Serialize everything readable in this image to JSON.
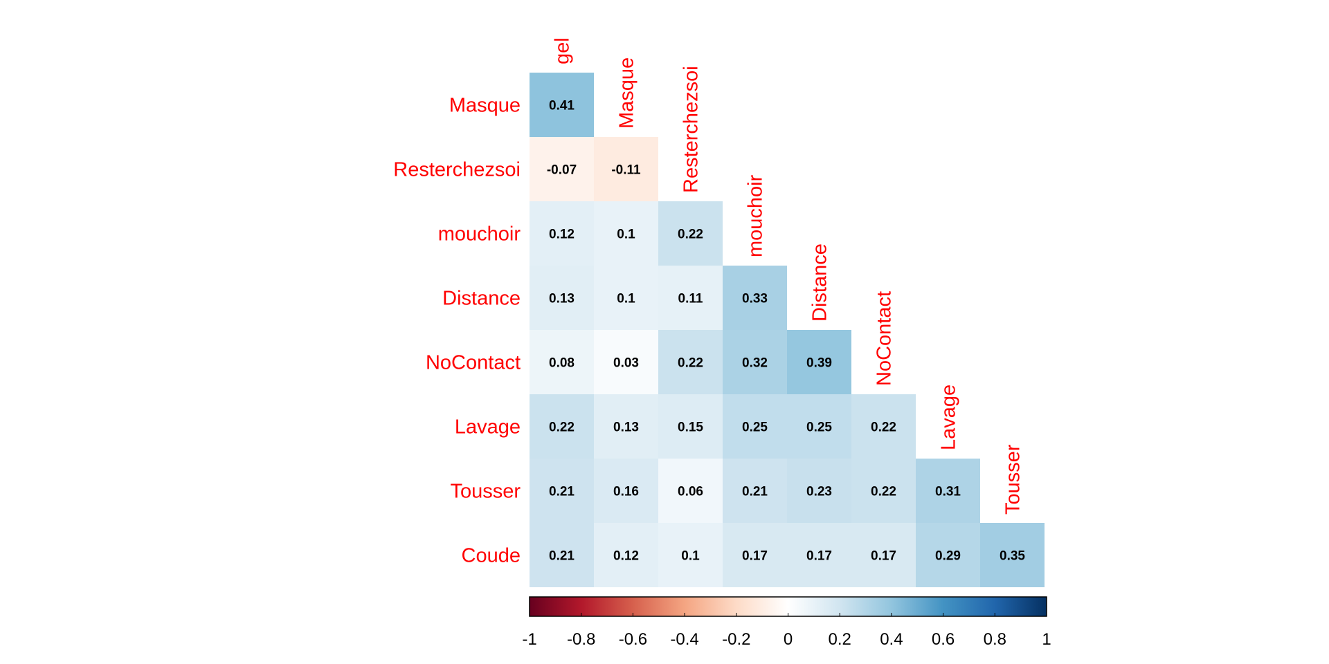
{
  "chart_data": {
    "type": "heatmap",
    "subtype": "correlation-matrix-lower-triangle",
    "title": "",
    "variables": [
      "gel",
      "Masque",
      "Resterchezsoi",
      "mouchoir",
      "Distance",
      "NoContact",
      "Lavage",
      "Tousser",
      "Coude"
    ],
    "row_labels": [
      "Masque",
      "Resterchezsoi",
      "mouchoir",
      "Distance",
      "NoContact",
      "Lavage",
      "Tousser",
      "Coude"
    ],
    "col_labels": [
      "gel",
      "Masque",
      "Resterchezsoi",
      "mouchoir",
      "Distance",
      "NoContact",
      "Lavage",
      "Tousser"
    ],
    "values": [
      [
        0.41
      ],
      [
        -0.07,
        -0.11
      ],
      [
        0.12,
        0.1,
        0.22
      ],
      [
        0.13,
        0.1,
        0.11,
        0.33
      ],
      [
        0.08,
        0.03,
        0.22,
        0.32,
        0.39
      ],
      [
        0.22,
        0.13,
        0.15,
        0.25,
        0.25,
        0.22
      ],
      [
        0.21,
        0.16,
        0.06,
        0.21,
        0.23,
        0.22,
        0.31
      ],
      [
        0.21,
        0.12,
        0.1,
        0.17,
        0.17,
        0.17,
        0.29,
        0.35
      ]
    ],
    "value_labels": [
      [
        "0.41"
      ],
      [
        "-0.07",
        "-0.11"
      ],
      [
        "0.12",
        "0.1",
        "0.22"
      ],
      [
        "0.13",
        "0.1",
        "0.11",
        "0.33"
      ],
      [
        "0.08",
        "0.03",
        "0.22",
        "0.32",
        "0.39"
      ],
      [
        "0.22",
        "0.13",
        "0.15",
        "0.25",
        "0.25",
        "0.22"
      ],
      [
        "0.21",
        "0.16",
        "0.06",
        "0.21",
        "0.23",
        "0.22",
        "0.31"
      ],
      [
        "0.21",
        "0.12",
        "0.1",
        "0.17",
        "0.17",
        "0.17",
        "0.29",
        "0.35"
      ]
    ],
    "color_range": [
      -1,
      1
    ],
    "colorbar": {
      "ticks": [
        -1,
        -0.8,
        -0.6,
        -0.4,
        -0.2,
        0,
        0.2,
        0.4,
        0.6,
        0.8,
        1
      ],
      "tick_labels": [
        "-1",
        "-0.8",
        "-0.6",
        "-0.4",
        "-0.2",
        "0",
        "0.2",
        "0.4",
        "0.6",
        "0.8",
        "1"
      ],
      "placement": "bottom"
    },
    "palette": [
      "#67001F",
      "#B2182B",
      "#D6604D",
      "#F4A582",
      "#FDDBC7",
      "#FFFFFF",
      "#D1E5F0",
      "#92C5DE",
      "#4393C3",
      "#2166AC",
      "#053061"
    ],
    "label_color": "#FF0000",
    "value_text_color": "#000000",
    "grid": false
  }
}
